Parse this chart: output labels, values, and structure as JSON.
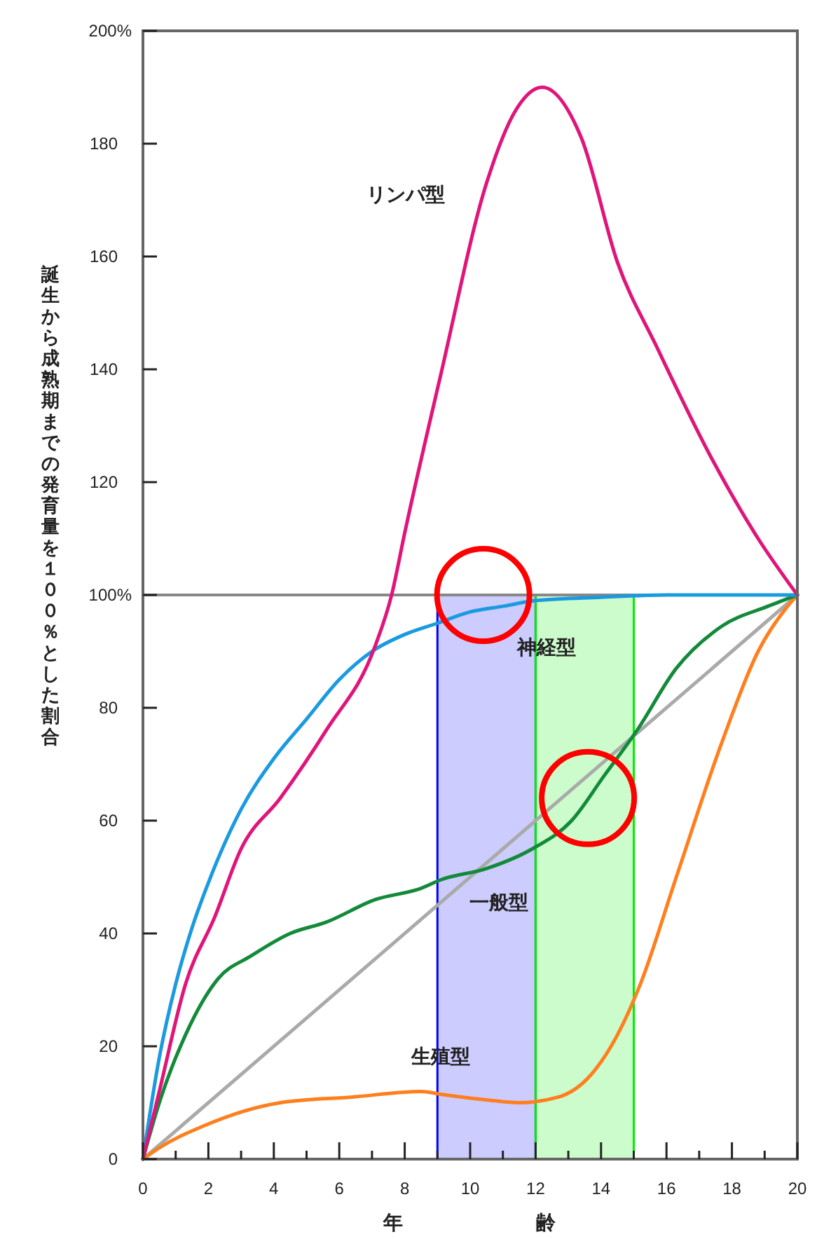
{
  "chart_data": {
    "type": "line",
    "xlabel": "年齢",
    "ylabel": "誕生から成熟期までの発育量を１００％とした割合",
    "xlim": [
      0,
      20
    ],
    "ylim": [
      0,
      200
    ],
    "xticks": [
      0,
      {
        "value": 1,
        "label": null
      },
      2,
      {
        "value": 3,
        "label": null
      },
      4,
      {
        "value": 5,
        "label": null
      },
      6,
      {
        "value": 7,
        "label": null
      },
      8,
      {
        "value": 9,
        "label": null
      },
      10,
      {
        "value": 11,
        "label": null
      },
      12,
      {
        "value": 13,
        "label": null
      },
      14,
      {
        "value": 15,
        "label": null
      },
      16,
      {
        "value": 17,
        "label": null
      },
      18,
      {
        "value": 19,
        "label": null
      },
      20
    ],
    "yticks": [
      0,
      20,
      40,
      60,
      80,
      {
        "value": 100,
        "label": "100%"
      },
      120,
      140,
      160,
      180,
      {
        "value": 200,
        "label": "200%"
      }
    ],
    "grid": false,
    "legend": false,
    "marker": "none",
    "line_style": "solid",
    "bands": [
      {
        "axis": "x",
        "from": 9,
        "to": 12,
        "color": "#0000ff"
      },
      {
        "axis": "x",
        "from": 12,
        "to": 15,
        "color": "#00ee00"
      }
    ],
    "ref_lines": [
      {
        "axis": "y",
        "value": 100,
        "color": "#888888"
      }
    ],
    "series": [
      {
        "color": "#aaaaaa",
        "x": [
          0,
          20
        ],
        "values": [
          0,
          100
        ]
      },
      {
        "name": "生殖型",
        "color": "#ff7f1e",
        "x": [
          0,
          0.5,
          1.9,
          4.2,
          6.4,
          8.5,
          9.1,
          10.5,
          11.5,
          12.7,
          13.7,
          14.5,
          15.2,
          16.3,
          17.7,
          18.8,
          19.7,
          20
        ],
        "values": [
          0,
          2,
          6,
          10,
          11,
          12,
          11.5,
          10.5,
          10,
          11,
          15,
          22,
          31,
          50,
          74,
          90,
          98,
          100
        ]
      },
      {
        "name": "一般型",
        "color": "#138a3a",
        "x": [
          0,
          0.5,
          1.3,
          2.3,
          3.3,
          4.5,
          5.6,
          7.1,
          8.5,
          9.1,
          10.5,
          11.9,
          13.1,
          14.1,
          15.1,
          16.3,
          17.7,
          19.1,
          20
        ],
        "values": [
          0,
          10,
          22,
          32,
          36,
          40,
          42,
          46,
          48,
          49.5,
          51.5,
          55,
          60,
          68,
          76,
          87,
          94.5,
          98,
          100
        ]
      },
      {
        "name": "神経型",
        "color": "#1a9ae0",
        "x": [
          0,
          0.5,
          1,
          1.5,
          2,
          3,
          4,
          5,
          6,
          7,
          8,
          9,
          10,
          11,
          12,
          14,
          16,
          20
        ],
        "values": [
          0,
          18,
          31,
          41,
          49,
          62,
          71,
          78,
          85,
          90,
          93,
          95,
          97,
          98,
          99,
          99.6,
          100,
          100
        ]
      },
      {
        "name": "リンパ型",
        "color": "#e0157a",
        "x": [
          0,
          0.5,
          1.3,
          2.2,
          3,
          4.2,
          5.6,
          7.1,
          7.6,
          8,
          9.1,
          10.5,
          11.4,
          12.2,
          13.4,
          14.5,
          15.7,
          17.4,
          18.8,
          20
        ],
        "values": [
          0,
          12,
          31,
          43,
          55,
          64,
          76,
          91,
          100,
          111,
          139,
          173,
          186,
          190,
          181,
          159,
          144,
          124,
          110,
          100
        ]
      }
    ]
  }
}
